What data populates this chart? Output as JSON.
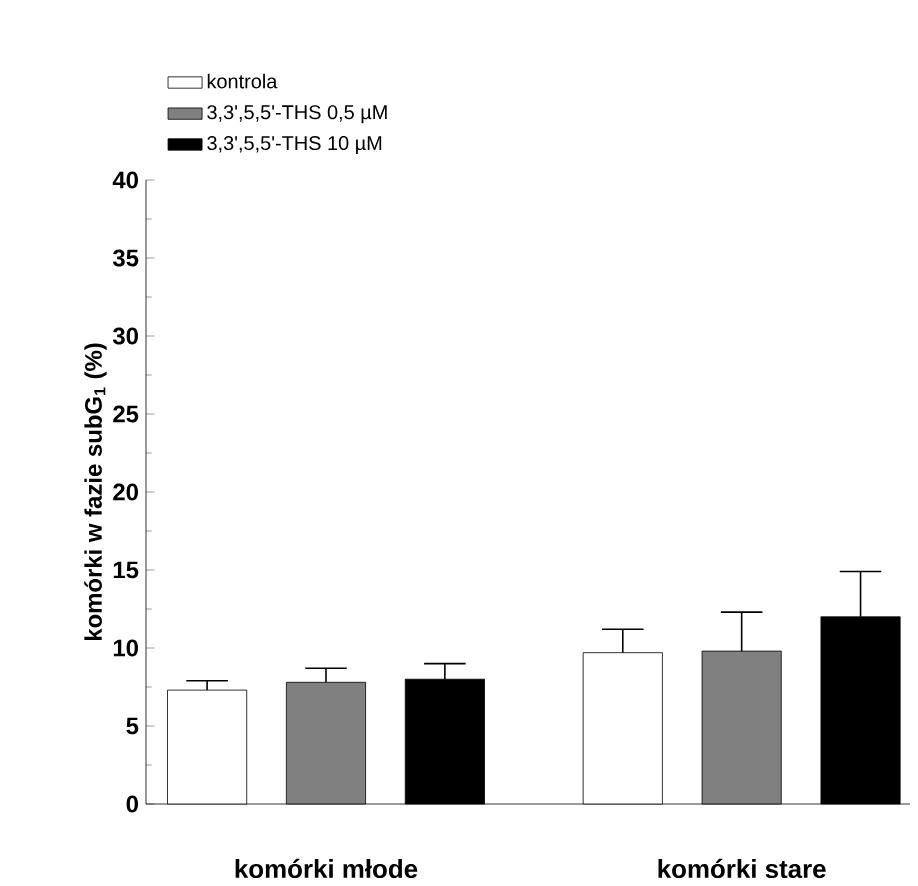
{
  "chart_data": {
    "type": "bar",
    "ylabel": "komórki w fazie subG$_{1}$ (%)",
    "categories": [
      "komórki młode",
      "komórki stare"
    ],
    "series": [
      {
        "name": "kontrola",
        "color": "#ffffff",
        "values": [
          7.3,
          9.7
        ],
        "errors": [
          [
            7.3,
            7.9
          ],
          [
            9.7,
            11.2
          ]
        ]
      },
      {
        "name": "3,3',5,5'-THS 0,5 µM",
        "color": "#808080",
        "values": [
          7.8,
          9.8
        ],
        "errors": [
          [
            7.8,
            8.7
          ],
          [
            9.8,
            12.3
          ]
        ]
      },
      {
        "name": "3,3',5,5'-THS 10 µM",
        "color": "#000000",
        "values": [
          8.0,
          12.0
        ],
        "errors": [
          [
            8.0,
            9.0
          ],
          [
            12.0,
            14.9
          ]
        ]
      }
    ],
    "ylim": [
      0,
      40
    ],
    "yticks": [
      0,
      5,
      10,
      15,
      20,
      25,
      30,
      35,
      40
    ],
    "grid": false,
    "legend": "top left"
  }
}
